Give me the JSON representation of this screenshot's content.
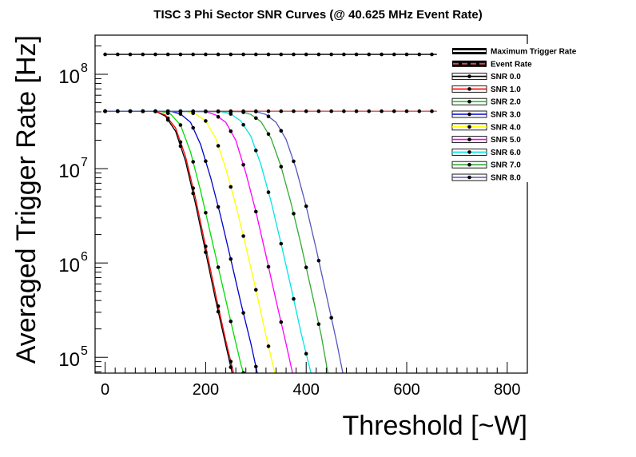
{
  "chart_data": {
    "type": "line",
    "title": "TISC 3 Phi Sector SNR Curves (@ 40.625 MHz Event Rate)",
    "xlabel": "Threshold [~W]",
    "ylabel": "Averaged Trigger Rate [Hz]",
    "xlim": [
      -20,
      840
    ],
    "ylim": [
      68000,
      260000000
    ],
    "yscale": "log",
    "x_ticks": [
      0,
      200,
      400,
      600,
      800
    ],
    "x_tick_labels": [
      "0",
      "200",
      "400",
      "600",
      "800"
    ],
    "y_ticks": [
      100000,
      1000000,
      10000000,
      100000000
    ],
    "y_tick_labels": [
      "10",
      "10",
      "10",
      "10"
    ],
    "y_tick_exponents": [
      "5",
      "6",
      "7",
      "8"
    ],
    "grid": false,
    "legend_position": "top-right",
    "maximum_trigger_rate": 162500000,
    "event_rate": 40625000,
    "marker_spacing": 25,
    "series": [
      {
        "name": "Maximum Trigger Rate",
        "color": "#000000",
        "style": "thick",
        "x": [
          0,
          660
        ],
        "y": [
          162500000,
          162500000
        ]
      },
      {
        "name": "Event Rate",
        "color": "#d05050",
        "style": "thick",
        "x": [
          0,
          660
        ],
        "y": [
          40625000,
          40625000
        ]
      },
      {
        "name": "SNR 0.0",
        "color": "#000000",
        "x": [
          0,
          100,
          120,
          140,
          160,
          180,
          200,
          220,
          240,
          255
        ],
        "y": [
          40625000,
          40600000,
          36000000,
          25000000,
          12000000,
          4200000,
          1300000,
          400000,
          135000,
          60000
        ]
      },
      {
        "name": "SNR 1.0",
        "color": "#ff0000",
        "x": [
          0,
          100,
          120,
          140,
          160,
          180,
          200,
          220,
          240,
          258
        ],
        "y": [
          40625000,
          40600000,
          37000000,
          27000000,
          13500000,
          4800000,
          1500000,
          460000,
          150000,
          60000
        ]
      },
      {
        "name": "SNR 2.0",
        "color": "#00dd00",
        "x": [
          0,
          110,
          130,
          150,
          170,
          190,
          210,
          230,
          250,
          270,
          278
        ],
        "y": [
          40625000,
          40600000,
          38000000,
          29000000,
          15000000,
          5800000,
          2000000,
          690000,
          240000,
          85000,
          60000
        ]
      },
      {
        "name": "SNR 3.0",
        "color": "#0000cc",
        "x": [
          0,
          130,
          150,
          170,
          190,
          210,
          230,
          250,
          270,
          290,
          305
        ],
        "y": [
          40625000,
          40600000,
          38000000,
          31000000,
          18000000,
          8000000,
          3100000,
          1100000,
          380000,
          140000,
          60000
        ]
      },
      {
        "name": "SNR 4.0",
        "color": "#ffff00",
        "x": [
          0,
          160,
          180,
          200,
          220,
          240,
          260,
          280,
          300,
          320,
          340
        ],
        "y": [
          40625000,
          40500000,
          38000000,
          32000000,
          21000000,
          10000000,
          4100000,
          1500000,
          520000,
          170000,
          60000
        ]
      },
      {
        "name": "SNR 5.0",
        "color": "#ff00ff",
        "x": [
          0,
          200,
          220,
          240,
          260,
          280,
          300,
          320,
          340,
          360,
          375
        ],
        "y": [
          40625000,
          40300000,
          37000000,
          31000000,
          20000000,
          9000000,
          3500000,
          1200000,
          400000,
          140000,
          60000
        ]
      },
      {
        "name": "SNR 6.0",
        "color": "#00e5e5",
        "x": [
          0,
          230,
          250,
          270,
          290,
          310,
          330,
          350,
          370,
          390,
          412
        ],
        "y": [
          40625000,
          40300000,
          38000000,
          32000000,
          22000000,
          11000000,
          4500000,
          1600000,
          550000,
          180000,
          60000
        ]
      },
      {
        "name": "SNR 7.0",
        "color": "#33aa33",
        "x": [
          0,
          270,
          290,
          310,
          330,
          350,
          370,
          390,
          410,
          430,
          445
        ],
        "y": [
          40625000,
          40300000,
          37500000,
          31500000,
          21000000,
          10500000,
          4300000,
          1550000,
          520000,
          170000,
          60000
        ]
      },
      {
        "name": "SNR 8.0",
        "color": "#5555bb",
        "x": [
          0,
          300,
          320,
          340,
          360,
          380,
          400,
          420,
          440,
          460,
          475
        ],
        "y": [
          40625000,
          40300000,
          37500000,
          31000000,
          20500000,
          10000000,
          4000000,
          1400000,
          460000,
          150000,
          60000
        ]
      }
    ]
  }
}
